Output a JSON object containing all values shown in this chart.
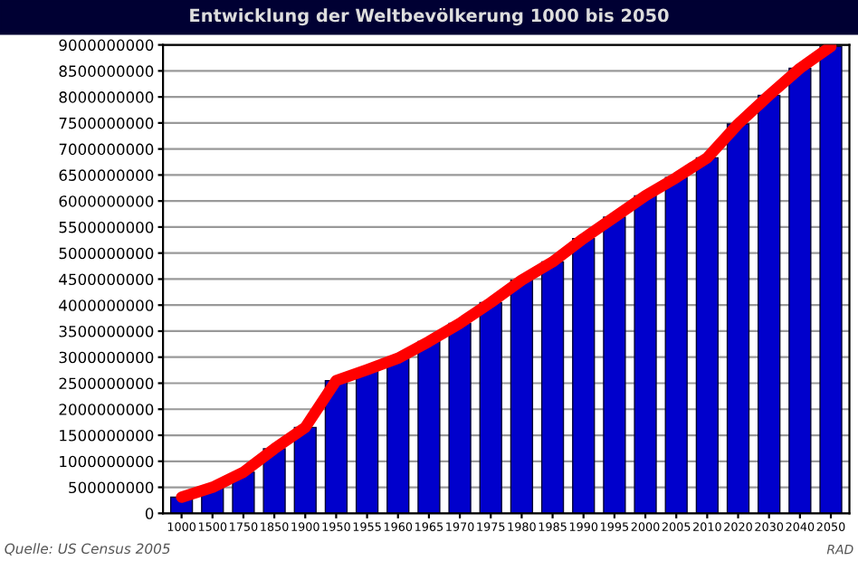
{
  "chart_data": {
    "type": "bar",
    "title": "Entwicklung der Weltbevölkerung 1000 bis 2050",
    "categories": [
      "1000",
      "1500",
      "1750",
      "1850",
      "1900",
      "1950",
      "1955",
      "1960",
      "1965",
      "1970",
      "1975",
      "1980",
      "1985",
      "1990",
      "1995",
      "2000",
      "2005",
      "2010",
      "2020",
      "2030",
      "2040",
      "2050"
    ],
    "series": [
      {
        "color": "#0000cc",
        "values": [
          310000000,
          500000000,
          790000000,
          1240000000,
          1650000000,
          2550000000,
          2760000000,
          2980000000,
          3300000000,
          3650000000,
          4050000000,
          4480000000,
          4830000000,
          5280000000,
          5690000000,
          6100000000,
          6450000000,
          6830000000,
          7480000000,
          8030000000,
          8550000000,
          8970000000
        ]
      },
      {
        "type": "line",
        "color": "#ff0000",
        "values": [
          310000000,
          500000000,
          790000000,
          1240000000,
          1650000000,
          2550000000,
          2760000000,
          2980000000,
          3300000000,
          3650000000,
          4050000000,
          4480000000,
          4830000000,
          5280000000,
          5690000000,
          6100000000,
          6450000000,
          6830000000,
          7480000000,
          8030000000,
          8550000000,
          8970000000
        ]
      }
    ],
    "ylim": [
      0,
      9000000000
    ],
    "yticks": [
      0,
      500000000,
      1000000000,
      1500000000,
      2000000000,
      2500000000,
      3000000000,
      3500000000,
      4000000000,
      4500000000,
      5000000000,
      5500000000,
      6000000000,
      6500000000,
      7000000000,
      7500000000,
      8000000000,
      8500000000,
      9000000000
    ],
    "grid": "y",
    "marker": "none",
    "line_style": "solid",
    "annotations": [
      "Quelle: US Census 2005",
      "RAD"
    ]
  }
}
